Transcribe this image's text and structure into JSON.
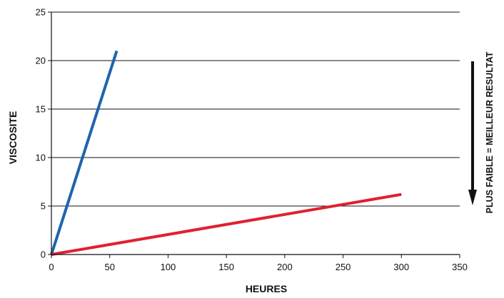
{
  "chart_data": {
    "type": "line",
    "xlabel": "HEURES",
    "ylabel": "VISCOSITE",
    "xlim": [
      0,
      350
    ],
    "ylim": [
      0,
      25
    ],
    "xticks": [
      0,
      50,
      100,
      150,
      200,
      250,
      300,
      350
    ],
    "yticks": [
      0,
      5,
      10,
      15,
      20,
      25
    ],
    "grid": "horizontal",
    "series": [
      {
        "color": "#1f64ad",
        "x": [
          0,
          56
        ],
        "y": [
          0,
          21
        ]
      },
      {
        "color": "#e0202f",
        "x": [
          0,
          300
        ],
        "y": [
          0,
          6.2
        ]
      }
    ],
    "annotation": {
      "text": "PLUS FAIBLE = MEILLEUR RESULTAT",
      "arrow": "down"
    }
  }
}
